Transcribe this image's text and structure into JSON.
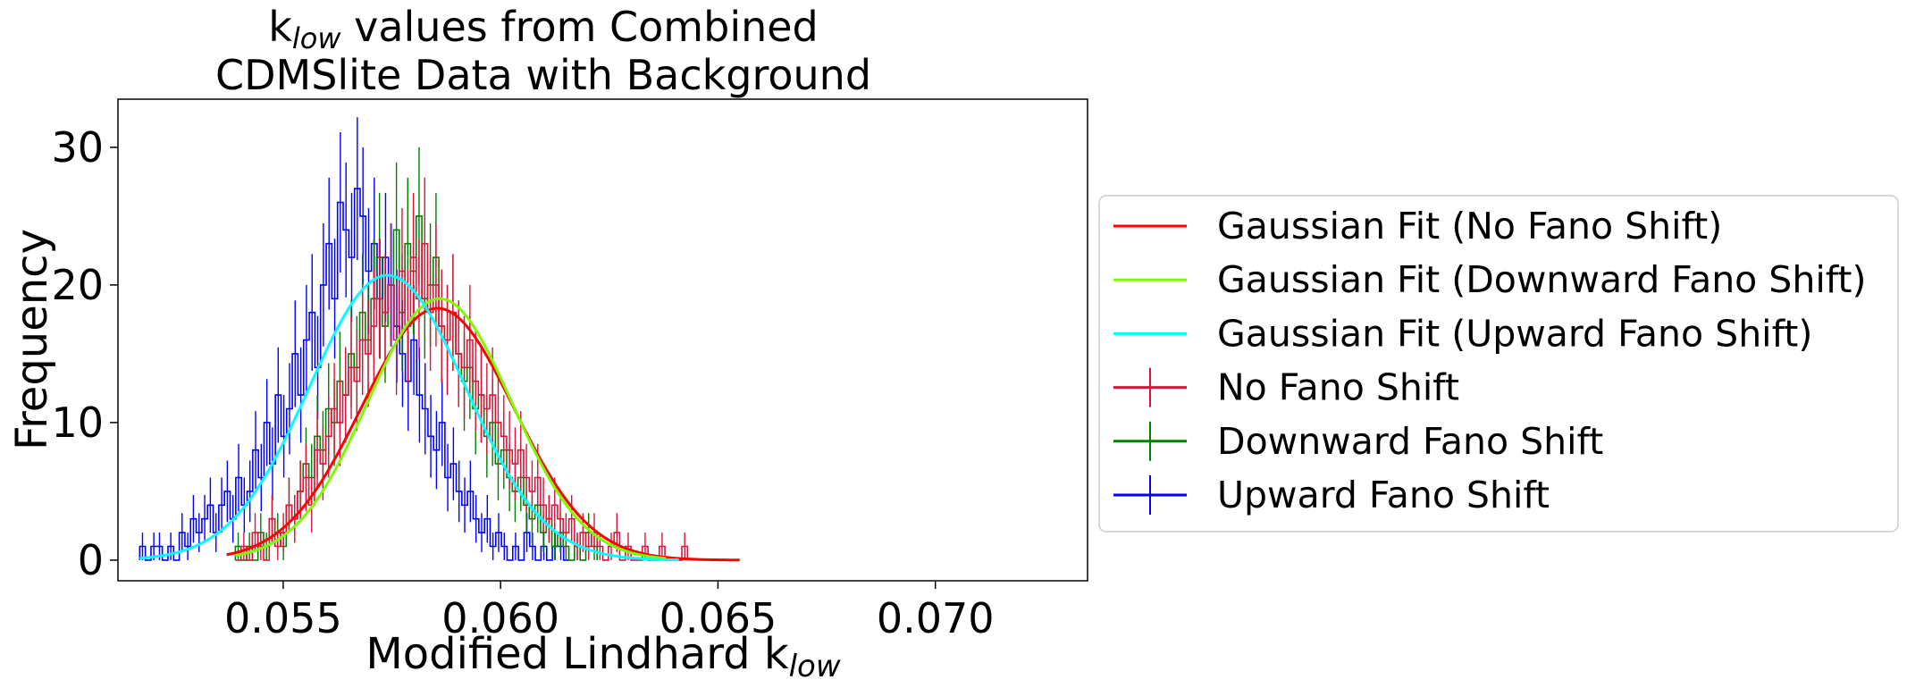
{
  "chart_data": {
    "type": "histogram",
    "title_line1_prefix": "k",
    "title_line1_sub": "low",
    "title_line1_suffix": " values from Combined",
    "title_line2": "CDMSlite Data with Background",
    "xlabel_prefix": "Modified Lindhard k",
    "xlabel_sub": "low",
    "ylabel": "Frequency",
    "xlim": [
      0.0512,
      0.0735
    ],
    "ylim": [
      -1.5,
      33.5
    ],
    "xticks": [
      0.055,
      0.06,
      0.065,
      0.07
    ],
    "xtick_labels": [
      "0.055",
      "0.060",
      "0.065",
      "0.070"
    ],
    "yticks": [
      0,
      10,
      20,
      30
    ],
    "ytick_labels": [
      "0",
      "10",
      "20",
      "30"
    ],
    "legend_position": "right, outside axes",
    "series": [
      {
        "name": "Upward Fano Shift",
        "color": "#0000ff",
        "x_start": 0.0517,
        "bin_width": 0.00013,
        "counts": [
          1,
          0,
          1,
          1,
          0,
          1,
          0,
          2,
          1,
          3,
          2,
          3,
          4,
          2,
          4,
          5,
          3,
          6,
          4,
          5,
          8,
          6,
          10,
          7,
          12,
          9,
          11,
          15,
          12,
          16,
          18,
          14,
          20,
          23,
          19,
          26,
          24,
          22,
          27,
          25,
          21,
          23,
          19,
          22,
          20,
          17,
          15,
          13,
          16,
          12,
          11,
          9,
          8,
          10,
          6,
          7,
          5,
          4,
          5,
          3,
          2,
          3,
          1,
          2,
          1,
          0,
          1,
          0,
          2,
          1,
          0,
          1,
          0,
          1,
          1,
          0
        ]
      },
      {
        "name": "Downward Fano Shift",
        "color": "#008000",
        "x_start": 0.0539,
        "bin_width": 0.00013,
        "counts": [
          1,
          0,
          1,
          0,
          2,
          1,
          3,
          2,
          1,
          4,
          3,
          5,
          7,
          6,
          9,
          8,
          11,
          10,
          13,
          12,
          15,
          14,
          18,
          16,
          19,
          22,
          17,
          20,
          24,
          18,
          23,
          21,
          25,
          19,
          20,
          22,
          17,
          16,
          18,
          15,
          13,
          14,
          11,
          12,
          9,
          10,
          7,
          8,
          6,
          5,
          6,
          4,
          3,
          4,
          2,
          3,
          1,
          2,
          1,
          0,
          1,
          0,
          2,
          1
        ]
      },
      {
        "name": "No Fano Shift",
        "color": "#dc143c",
        "x_start": 0.0539,
        "bin_width": 0.00013,
        "counts": [
          0,
          1,
          0,
          2,
          1,
          0,
          3,
          1,
          2,
          4,
          3,
          5,
          6,
          4,
          8,
          7,
          9,
          11,
          10,
          12,
          14,
          13,
          16,
          15,
          17,
          19,
          18,
          20,
          16,
          21,
          17,
          22,
          19,
          23,
          18,
          20,
          17,
          16,
          18,
          15,
          14,
          16,
          13,
          12,
          11,
          12,
          10,
          9,
          8,
          7,
          8,
          6,
          5,
          6,
          4,
          3,
          4,
          3,
          2,
          3,
          1,
          2,
          1,
          2,
          1,
          0,
          1,
          2,
          0,
          1,
          0,
          0,
          1,
          0,
          0,
          1,
          0,
          0,
          0,
          1
        ]
      }
    ],
    "fits": [
      {
        "name": "Gaussian Fit (No Fano Shift)",
        "color": "#ff0000",
        "amplitude": 18.3,
        "mean": 0.05855,
        "sigma": 0.00175,
        "x_range": [
          0.0537,
          0.0655
        ]
      },
      {
        "name": "Gaussian Fit (Downward Fano Shift)",
        "color": "#7cfc00",
        "amplitude": 19.0,
        "mean": 0.0586,
        "sigma": 0.00165,
        "x_range": [
          0.0539,
          0.0638
        ]
      },
      {
        "name": "Gaussian Fit (Upward Fano Shift)",
        "color": "#00ffff",
        "amplitude": 20.7,
        "mean": 0.0574,
        "sigma": 0.0018,
        "x_range": [
          0.0517,
          0.0641
        ]
      }
    ],
    "legend": [
      {
        "label": "Gaussian Fit (No Fano Shift)",
        "color": "#ff0000",
        "kind": "line"
      },
      {
        "label": "Gaussian Fit (Downward Fano Shift)",
        "color": "#7cfc00",
        "kind": "line"
      },
      {
        "label": "Gaussian Fit (Upward Fano Shift)",
        "color": "#00ffff",
        "kind": "line"
      },
      {
        "label": "No Fano Shift",
        "color": "#dc143c",
        "kind": "errorbar"
      },
      {
        "label": "Downward Fano Shift",
        "color": "#008000",
        "kind": "errorbar"
      },
      {
        "label": "Upward Fano Shift",
        "color": "#0000ff",
        "kind": "errorbar"
      }
    ]
  }
}
